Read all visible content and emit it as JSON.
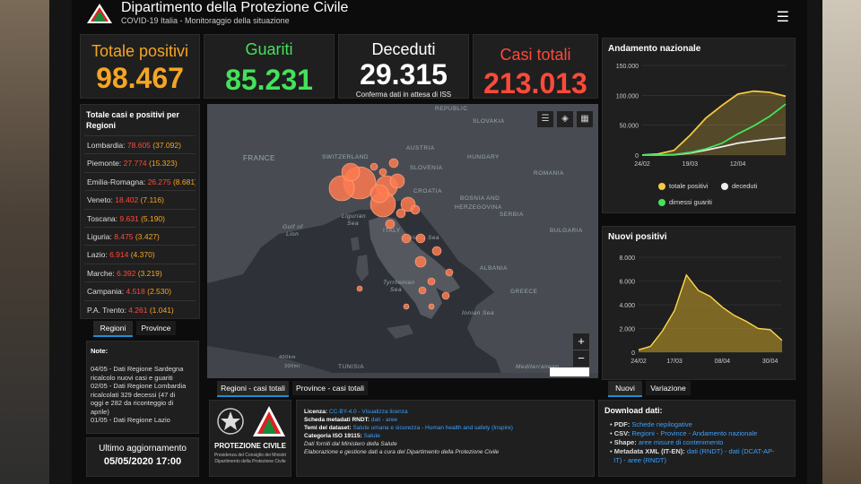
{
  "header": {
    "title": "Dipartimento della Protezione Civile",
    "subtitle": "COVID-19 Italia - Monitoraggio della situazione"
  },
  "kpis": {
    "totale_positivi": {
      "label": "Totale positivi",
      "value": "98.467",
      "color": "#f5a623"
    },
    "guariti": {
      "label": "Guariti",
      "value": "85.231",
      "color": "#44e25a"
    },
    "deceduti": {
      "label": "Deceduti",
      "value": "29.315",
      "note": "Conferma dati in attesa di ISS",
      "color": "#ffffff"
    },
    "casi_totali": {
      "label": "Casi totali",
      "value": "213.013",
      "color": "#ff4a3a"
    }
  },
  "regions": {
    "title": "Totale casi e positivi per Regioni",
    "items": [
      {
        "name": "Lombardia:",
        "cases": "78.605",
        "positives": "(37.092)"
      },
      {
        "name": "Piemonte:",
        "cases": "27.774",
        "positives": "(15.323)"
      },
      {
        "name": "Emilia-Romagna:",
        "cases": "26.275",
        "positives": "(8.681)"
      },
      {
        "name": "Veneto:",
        "cases": "18.402",
        "positives": "(7.116)"
      },
      {
        "name": "Toscana:",
        "cases": "9.631",
        "positives": "(5.190)"
      },
      {
        "name": "Liguria:",
        "cases": "8.475",
        "positives": "(3.427)"
      },
      {
        "name": "Lazio:",
        "cases": "6.914",
        "positives": "(4.370)"
      },
      {
        "name": "Marche:",
        "cases": "6.392",
        "positives": "(3.219)"
      },
      {
        "name": "Campania:",
        "cases": "4.518",
        "positives": "(2.530)"
      },
      {
        "name": "P.A. Trento:",
        "cases": "4.261",
        "positives": "(1.041)"
      }
    ],
    "tabs": [
      "Regioni",
      "Province"
    ]
  },
  "notes": {
    "title": "Note:",
    "lines": [
      "04/05 - Dati Regione Sardegna",
      "ricalcolo nuovi casi e guariti",
      "02/05 - Dati Regione Lombardia",
      "ricalcolati 329 decessi (47 di",
      "oggi e 282 da riconteggio di",
      "aprile)",
      "01/05 - Dati Regione Lazio"
    ]
  },
  "last_update": {
    "label": "Ultimo aggiornamento",
    "value": "05/05/2020 17:00"
  },
  "map": {
    "labels": {
      "france": "FRANCE",
      "switzerland": "SWITZERLAND",
      "austria": "AUSTRIA",
      "slovakia": "SLOVAKIA",
      "hungary": "HUNGARY",
      "romania": "ROMANIA",
      "slovenia": "SLOVENIA",
      "croatia": "CROATIA",
      "bosnia": "BOSNIA AND",
      "herzegovina": "HERZEGOVINA",
      "serbia": "SERBIA",
      "bulgaria": "BULGARIA",
      "italy": "ITALY",
      "albania": "ALBANIA",
      "greece": "GREECE",
      "tunisia": "TUNISIA",
      "ligurian": "Ligurian",
      "ligurian2": "Sea",
      "gulf": "Gulf of",
      "gulf2": "Lion",
      "adriatic": "Adriatic Sea",
      "tyrrhenian": "Tyrrhenian",
      "tyrrhenian2": "Sea",
      "ionian": "Ionian Sea",
      "mediterranean": "Mediterranean",
      "republic": "REPUBLIC",
      "scale1": "400km",
      "scale2": "300mi"
    },
    "tabs": [
      "Regioni - casi totali",
      "Province - casi totali"
    ],
    "zoom_in": "+",
    "zoom_out": "−"
  },
  "chart_national": {
    "title": "Andamento nazionale",
    "legend": [
      "totale positivi",
      "deceduti",
      "dimessi guariti"
    ],
    "colors": {
      "positivi": "#f5c842",
      "deceduti": "#eeeeee",
      "guariti": "#44e25a"
    }
  },
  "chart_new": {
    "title": "Nuovi positivi",
    "tabs": [
      "Nuovi",
      "Variazione"
    ]
  },
  "info": {
    "licenza_k": "Licenza:",
    "licenza_v": "CC-BY-4.0 - Visualizza licenza",
    "scheda_k": "Scheda metadati RNDT:",
    "scheda_v": "dati - aree",
    "temi_k": "Temi del dataset:",
    "temi_v": "Salute umana e sicurezza - Human health and safety (Inspire)",
    "cat_k": "Categoria ISO 19115:",
    "cat_v": "Salute",
    "line5": "Dati forniti dal Ministero della Salute",
    "line6": "Elaborazione e gestione dati a cura del Dipartimento della Protezione Civile"
  },
  "logo_block": {
    "name": "PROTEZIONE CIVILE",
    "sub1": "Presidenza del Consiglio dei Ministri",
    "sub2": "Dipartimento della Protezione Civile"
  },
  "download": {
    "title": "Download dati:",
    "pdf_k": "PDF:",
    "pdf_v": "Schede riepilogative",
    "csv_k": "CSV:",
    "csv_v": "Regioni - Province - Andamento nazionale",
    "shape_k": "Shape:",
    "shape_v": "aree misure di contenimento",
    "meta_k": "Metadata XML (IT-EN):",
    "meta_v1": "dati (RNDT) -",
    "meta_v2": "dati (DCAT-AP-",
    "meta_v3": "IT) -",
    "meta_v4": "aree (RNDT)"
  },
  "chart_data": [
    {
      "type": "line",
      "title": "Andamento nazionale",
      "x": [
        "24/02",
        "02/03",
        "09/03",
        "19/03",
        "26/03",
        "02/04",
        "12/04",
        "19/04",
        "26/04",
        "05/05"
      ],
      "xticks": [
        "24/02",
        "19/03",
        "12/04"
      ],
      "series": [
        {
          "name": "totale positivi",
          "values": [
            200,
            1800,
            7900,
            33000,
            62000,
            83000,
            102000,
            107000,
            105000,
            98500
          ]
        },
        {
          "name": "deceduti",
          "values": [
            7,
            52,
            460,
            3400,
            8200,
            13900,
            19900,
            23600,
            26600,
            29300
          ]
        },
        {
          "name": "dimessi guariti",
          "values": [
            1,
            150,
            720,
            4400,
            10400,
            19700,
            35400,
            48900,
            64900,
            85200
          ]
        }
      ],
      "ylim": [
        0,
        150000
      ],
      "yticks": [
        "0",
        "50.000",
        "100.000",
        "150.000"
      ]
    },
    {
      "type": "area",
      "title": "Nuovi positivi",
      "x": [
        "24/02",
        "03/03",
        "10/03",
        "17/03",
        "21/03",
        "26/03",
        "01/04",
        "08/04",
        "14/04",
        "20/04",
        "26/04",
        "30/04",
        "05/05"
      ],
      "xticks": [
        "24/02",
        "17/03",
        "08/04",
        "30/04"
      ],
      "values": [
        200,
        500,
        1800,
        3500,
        6500,
        5200,
        4700,
        3800,
        3100,
        2600,
        2000,
        1900,
        1000
      ],
      "ylim": [
        0,
        8000
      ],
      "yticks": [
        "0",
        "2.000",
        "4.000",
        "6.000",
        "8.000"
      ]
    }
  ]
}
